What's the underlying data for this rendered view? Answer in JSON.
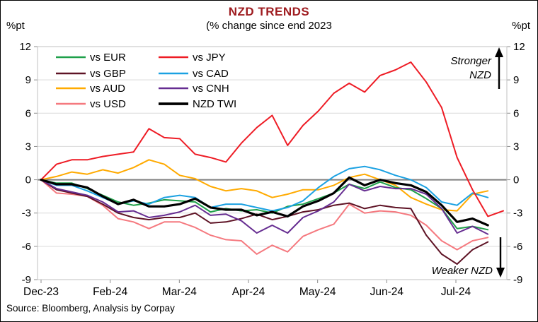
{
  "header": {
    "title": "NZD TRENDS",
    "subtitle": "(% change since end 2023",
    "unit_left": "%pt",
    "unit_right": "%pt"
  },
  "annotations": {
    "stronger_line1": "Stronger",
    "stronger_line2": "NZD",
    "weaker": "Weaker NZD"
  },
  "source": "Source: Bloomberg, Analysis by Corpay",
  "colors": {
    "title": "#9e1b1f",
    "grid": "#d9d9d9",
    "zero_line": "#7f7f7f",
    "frame": "#c0c0c0",
    "tick": "#8c8c8c",
    "text": "#000000"
  },
  "chart_data": {
    "type": "line",
    "title": "NZD TRENDS",
    "subtitle": "(% change since end 2023",
    "ylabel": "%pt",
    "ylim": [
      -9,
      12
    ],
    "y_ticks": [
      12,
      9,
      6,
      3,
      0,
      -3,
      -6,
      -9
    ],
    "x_tick_labels": [
      "Dec-23",
      "Feb-24",
      "Mar-24",
      "Apr-24",
      "May-24",
      "Jun-24",
      "Jul-24"
    ],
    "x_range_note": "weekly samples from end Dec 2023 to late Jul 2024",
    "grid": true,
    "legend_position": "top-left",
    "series": [
      {
        "name": "vs EUR",
        "color": "#1fa04a",
        "width": 2,
        "values": [
          0,
          -0.3,
          -0.3,
          -0.8,
          -1.4,
          -2.0,
          -2.3,
          -2.1,
          -1.8,
          -1.9,
          -2.0,
          -2.9,
          -2.6,
          -2.8,
          -2.7,
          -3.0,
          -2.4,
          -2.2,
          -1.7,
          -1.2,
          -0.4,
          -0.8,
          -0.2,
          -0.7,
          -0.9,
          -1.7,
          -2.6,
          -4.4,
          -4.2,
          -4.5,
          null
        ]
      },
      {
        "name": "vs GBP",
        "color": "#5e1325",
        "width": 2,
        "values": [
          0,
          -0.9,
          -1.2,
          -1.5,
          -2.2,
          -3.0,
          -3.4,
          -3.6,
          -3.4,
          -3.4,
          -3.0,
          -3.9,
          -3.8,
          -3.5,
          -3.1,
          -3.6,
          -3.3,
          -2.9,
          -2.7,
          -2.3,
          -2.1,
          -2.6,
          -2.3,
          -2.5,
          -2.6,
          -5.0,
          -6.7,
          -7.6,
          -6.3,
          -5.6,
          null
        ]
      },
      {
        "name": "vs AUD",
        "color": "#ffaa00",
        "width": 2,
        "values": [
          0,
          0.3,
          0.7,
          0.5,
          0.9,
          0.6,
          1.1,
          1.8,
          1.4,
          0.4,
          0.1,
          -0.6,
          -1.0,
          -0.8,
          -1.0,
          -1.6,
          -1.3,
          -0.9,
          -0.9,
          -0.5,
          0.2,
          0.5,
          0.0,
          -0.5,
          -1.6,
          -2.2,
          -2.7,
          -2.8,
          -1.3,
          -1.0,
          null
        ]
      },
      {
        "name": "vs USD",
        "color": "#f5797f",
        "width": 2,
        "values": [
          0,
          -1.2,
          -1.3,
          -1.5,
          -2.3,
          -3.5,
          -3.8,
          -4.4,
          -3.8,
          -3.8,
          -4.3,
          -5.0,
          -5.4,
          -5.5,
          -6.7,
          -5.9,
          -6.5,
          -5.1,
          -4.5,
          -4.0,
          -2.2,
          -3.0,
          -2.8,
          -2.9,
          -3.2,
          -4.1,
          -5.5,
          -6.3,
          -5.5,
          -5.2,
          null
        ]
      },
      {
        "name": "vs JPY",
        "color": "#ee1c25",
        "width": 2,
        "values": [
          0,
          1.4,
          1.8,
          1.8,
          2.1,
          2.3,
          2.5,
          4.6,
          3.8,
          3.7,
          2.3,
          2.0,
          1.6,
          3.3,
          4.7,
          5.8,
          3.1,
          4.9,
          6.2,
          7.8,
          8.7,
          7.9,
          9.4,
          9.9,
          10.6,
          8.8,
          6.5,
          2.0,
          -0.9,
          -3.3,
          -2.8
        ]
      },
      {
        "name": "vs CAD",
        "color": "#1ba1e2",
        "width": 2,
        "values": [
          0,
          -0.5,
          -0.5,
          -1.0,
          -1.6,
          -2.2,
          -1.9,
          -2.2,
          -1.6,
          -1.4,
          -1.6,
          -2.5,
          -2.2,
          -2.2,
          -2.5,
          -2.8,
          -2.5,
          -1.9,
          -0.7,
          0.3,
          1.0,
          1.2,
          0.9,
          0.4,
          0.0,
          -0.7,
          -2.0,
          -2.3,
          -1.2,
          -1.6,
          null
        ]
      },
      {
        "name": "vs CNH",
        "color": "#662d91",
        "width": 2,
        "values": [
          0,
          -0.8,
          -1.1,
          -1.4,
          -2.0,
          -2.9,
          -2.8,
          -3.4,
          -3.2,
          -2.9,
          -2.3,
          -3.2,
          -3.1,
          -3.7,
          -4.8,
          -4.1,
          -4.8,
          -3.4,
          -2.8,
          -2.0,
          -0.4,
          -1.0,
          -0.6,
          -0.8,
          -0.8,
          -1.3,
          -2.6,
          -4.8,
          -4.2,
          -4.9,
          null
        ]
      },
      {
        "name": "NZD TWI",
        "color": "#000000",
        "width": 3.2,
        "values": [
          0,
          -0.4,
          -0.4,
          -0.7,
          -1.5,
          -2.2,
          -1.8,
          -2.4,
          -2.4,
          -2.2,
          -1.7,
          -2.5,
          -2.7,
          -2.7,
          -3.2,
          -2.9,
          -3.3,
          -2.4,
          -1.9,
          -1.2,
          0.2,
          -0.5,
          0.0,
          -0.3,
          -0.5,
          -1.1,
          -2.3,
          -3.8,
          -3.5,
          -4.1,
          null
        ]
      }
    ]
  }
}
